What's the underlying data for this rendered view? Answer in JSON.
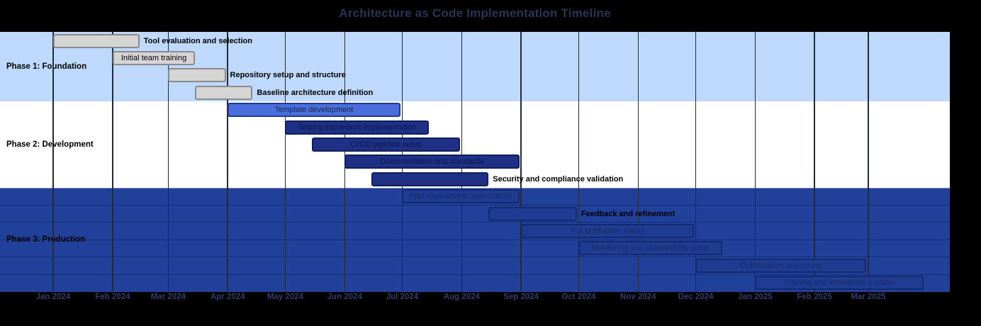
{
  "title": "Architecture as Code Implementation Timeline",
  "chart_data": {
    "type": "gantt",
    "title": "Architecture as Code Implementation Timeline",
    "time_origin": "2024-01-01",
    "axis_ticks": [
      {
        "label": "Jan 2024",
        "date": "2024-01-01"
      },
      {
        "label": "Feb 2024",
        "date": "2024-02-01"
      },
      {
        "label": "Mar 2024",
        "date": "2024-03-01"
      },
      {
        "label": "Apr 2024",
        "date": "2024-04-01"
      },
      {
        "label": "May 2024",
        "date": "2024-05-01"
      },
      {
        "label": "Jun 2024",
        "date": "2024-06-01"
      },
      {
        "label": "Jul 2024",
        "date": "2024-07-01"
      },
      {
        "label": "Aug 2024",
        "date": "2024-08-01"
      },
      {
        "label": "Sep 2024",
        "date": "2024-09-01"
      },
      {
        "label": "Oct 2024",
        "date": "2024-10-01"
      },
      {
        "label": "Nov 2024",
        "date": "2024-11-01"
      },
      {
        "label": "Dec 2024",
        "date": "2024-12-01"
      },
      {
        "label": "Jan 2025",
        "date": "2025-01-01"
      },
      {
        "label": "Feb 2025",
        "date": "2025-02-01"
      },
      {
        "label": "Mar 2025",
        "date": "2025-03-01"
      }
    ],
    "sections": [
      {
        "name": "Phase 1: Foundation",
        "style_key": "phase1",
        "tasks": [
          {
            "label": "Tool evaluation and selection",
            "start": "2024-01-01",
            "end": "2024-02-15",
            "style": "done",
            "label_position": "right"
          },
          {
            "label": "Initial team training",
            "start": "2024-02-01",
            "end": "2024-03-15",
            "style": "done",
            "label_position": "inside"
          },
          {
            "label": "Repository setup and structure",
            "start": "2024-03-01",
            "end": "2024-03-31",
            "style": "done",
            "label_position": "right"
          },
          {
            "label": "Baseline architecture definition",
            "start": "2024-03-15",
            "end": "2024-04-14",
            "style": "done",
            "label_position": "right"
          }
        ]
      },
      {
        "name": "Phase 2: Development",
        "style_key": "phase2",
        "tasks": [
          {
            "label": "Template development",
            "start": "2024-04-01",
            "end": "2024-06-30",
            "style": "active",
            "label_position": "inside"
          },
          {
            "label": "Testing framework implementation",
            "start": "2024-05-01",
            "end": "2024-07-15",
            "style": "navy",
            "label_position": "inside"
          },
          {
            "label": "CI/CD pipeline setup",
            "start": "2024-05-15",
            "end": "2024-07-31",
            "style": "navy",
            "label_position": "inside"
          },
          {
            "label": "Documentation and standards",
            "start": "2024-06-01",
            "end": "2024-08-31",
            "style": "navy",
            "label_position": "inside"
          },
          {
            "label": "Security and compliance validation",
            "start": "2024-06-15",
            "end": "2024-08-15",
            "style": "navy",
            "label_position": "right"
          }
        ]
      },
      {
        "name": "Phase 3: Production",
        "style_key": "phase3",
        "tasks": [
          {
            "label": "Pilot deployment (non-critical)",
            "start": "2024-07-01",
            "end": "2024-08-31",
            "style": "prod",
            "label_position": "inside"
          },
          {
            "label": "Feedback and refinement",
            "start": "2024-08-15",
            "end": "2024-09-30",
            "style": "prod",
            "label_position": "right"
          },
          {
            "label": "Full production rollout",
            "start": "2024-09-01",
            "end": "2024-11-30",
            "style": "prod",
            "label_position": "inside"
          },
          {
            "label": "Monitoring and observability setup",
            "start": "2024-10-01",
            "end": "2024-12-15",
            "style": "prod",
            "label_position": "inside"
          },
          {
            "label": "Optimisation and tuning",
            "start": "2024-12-01",
            "end": "2025-02-28",
            "style": "prod",
            "label_position": "inside"
          },
          {
            "label": "Training and knowledge transfer",
            "start": "2025-01-01",
            "end": "2025-03-30",
            "style": "prod",
            "label_position": "inside"
          }
        ]
      }
    ],
    "colors": {
      "page_bg": "#000000",
      "title_text": "#283454",
      "axis_text": "#2e3c6b",
      "grid_line": "#232a38",
      "section_phase1_bg": "#bed9fb",
      "section_phase2_bg": "#ffffff",
      "section_phase3_bg": "#20409a",
      "section_label_text": "#000000",
      "outside_label_text": "#000000",
      "task_done_fill": "#d5d5d5",
      "task_done_border": "#8a8a8a",
      "task_done_text": "#000000",
      "task_active_fill": "#4a6fdd",
      "task_active_border": "#1f3a93",
      "task_active_text": "#16224e",
      "task_navy_fill": "#1e3187",
      "task_navy_border": "#101f56",
      "task_navy_text": "#0e1747",
      "task_prod_fill": "#1f3c92",
      "task_prod_border": "#132a6e",
      "task_prod_text": "#1b2c68"
    },
    "layout_hints": {
      "legend": "none",
      "grid": "vertical-month-lines",
      "x_range": [
        "2023-12-04",
        "2025-04-12"
      ]
    }
  }
}
